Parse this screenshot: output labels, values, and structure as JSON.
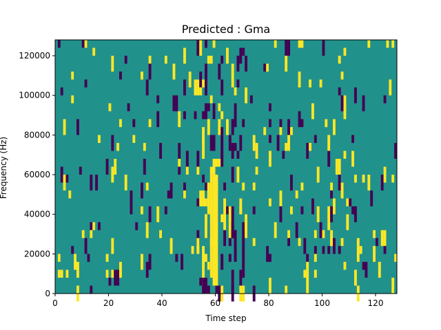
{
  "chart_data": {
    "type": "heatmap",
    "title": "Predicted : Gma",
    "xlabel": "Time step",
    "ylabel": "Frequency (Hz)",
    "xlim": [
      0,
      128
    ],
    "ylim": [
      0,
      128000
    ],
    "x_ticks": [
      0,
      20,
      40,
      60,
      80,
      100,
      120
    ],
    "x_tick_labels": [
      "0",
      "20",
      "40",
      "60",
      "80",
      "100",
      "120"
    ],
    "y_ticks": [
      0,
      20000,
      40000,
      60000,
      80000,
      100000,
      120000
    ],
    "y_tick_labels": [
      "0",
      "20000",
      "40000",
      "60000",
      "80000",
      "100000",
      "120000"
    ],
    "colormap": "viridis",
    "background_value": 0.5,
    "colors": {
      "low": "#440154",
      "mid": "#21918c",
      "high": "#fde725"
    },
    "grid": false,
    "legend": "none",
    "value_levels": {
      "low": 0,
      "mid": 0.5,
      "high": 1
    },
    "value_columns": [
      {
        "x": 55,
        "y": [
          0,
          8000
        ],
        "value": "low"
      },
      {
        "x": 56,
        "y": [
          0,
          8000
        ],
        "value": "low"
      },
      {
        "x": 57,
        "y": [
          0,
          4000
        ],
        "value": "low"
      },
      {
        "x": 57,
        "y": [
          40000,
          56000
        ],
        "value": "high"
      },
      {
        "x": 58,
        "y": [
          8000,
          56000
        ],
        "value": "high"
      },
      {
        "x": 59,
        "y": [
          4000,
          64000
        ],
        "value": "high"
      },
      {
        "x": 60,
        "y": [
          12000,
          48000
        ],
        "value": "high"
      },
      {
        "x": 56,
        "y": [
          28000,
          40000
        ],
        "value": "high"
      },
      {
        "x": 55,
        "y": [
          12000,
          24000
        ],
        "value": "high"
      },
      {
        "x": 54,
        "y": [
          44000,
          52000
        ],
        "value": "high"
      },
      {
        "x": 66,
        "y": [
          0,
          12000
        ],
        "value": "low"
      },
      {
        "x": 67,
        "y": [
          16000,
          32000
        ],
        "value": "low"
      },
      {
        "x": 66,
        "y": [
          28000,
          44000
        ],
        "value": "low"
      },
      {
        "x": 67,
        "y": [
          72000,
          76000
        ],
        "value": "low"
      },
      {
        "x": 2,
        "y": [
          8000,
          12000
        ],
        "value": "high"
      },
      {
        "x": 4,
        "y": [
          8000,
          12000
        ],
        "value": "high"
      },
      {
        "x": 1,
        "y": [
          124000,
          128000
        ],
        "value": "low"
      }
    ]
  }
}
